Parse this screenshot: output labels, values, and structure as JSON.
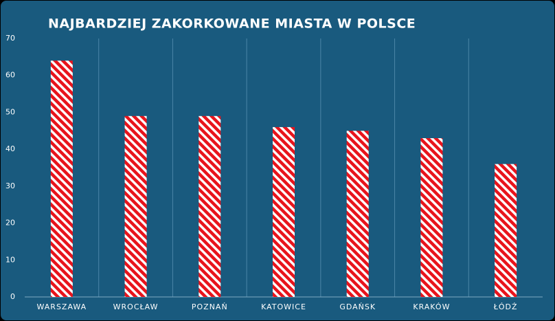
{
  "chart_data": {
    "type": "bar",
    "title": "NAJBARDZIEJ ZAKORKOWANE MIASTA W POLSCE",
    "categories": [
      "WARSZAWA",
      "WROCŁAW",
      "POZNAŃ",
      "KATOWICE",
      "GDAŃSK",
      "KRAKÓW",
      "ŁÓDŹ"
    ],
    "values": [
      64,
      49,
      49,
      46,
      45,
      43,
      36
    ],
    "color": "#e8141c",
    "ylim": [
      0,
      70
    ],
    "yticks": [
      0,
      10,
      20,
      30,
      40,
      50,
      60,
      70
    ]
  }
}
